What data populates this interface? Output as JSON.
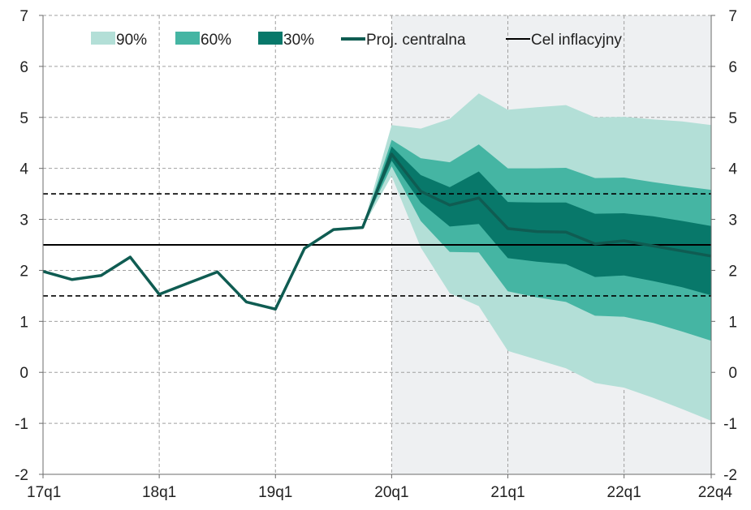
{
  "chart_data": {
    "type": "area",
    "title": "",
    "xlabel": "",
    "ylabel": "",
    "ylim": [
      -2,
      7
    ],
    "yticks": [
      -2,
      -1,
      0,
      1,
      2,
      3,
      4,
      5,
      6,
      7
    ],
    "yticks_right": [
      -2,
      -1,
      0,
      1,
      2,
      3,
      4,
      5,
      6,
      7
    ],
    "xticks": [
      {
        "label": "17q1",
        "x": 0
      },
      {
        "label": "18q1",
        "x": 4
      },
      {
        "label": "19q1",
        "x": 8
      },
      {
        "label": "20q1",
        "x": 12
      },
      {
        "label": "21q1",
        "x": 16
      },
      {
        "label": "22q1",
        "x": 20
      },
      {
        "label": "22q4",
        "x": 23
      }
    ],
    "quarters": [
      "17q1",
      "17q2",
      "17q3",
      "17q4",
      "18q1",
      "18q2",
      "18q3",
      "18q4",
      "19q1",
      "19q2",
      "19q3",
      "19q4",
      "20q1",
      "20q2",
      "20q3",
      "20q4",
      "21q1",
      "21q2",
      "21q3",
      "21q4",
      "22q1",
      "22q2",
      "22q3",
      "22q4"
    ],
    "grid": true,
    "legend_position": "top",
    "projection_shading_from": "20q1",
    "colors": {
      "band90": "#b3dfd7",
      "band60": "#45b5a3",
      "band30": "#08786a",
      "central": "#0f5c52",
      "target": "#000000",
      "shade": "#eef0f2",
      "grid": "#a0a0a0"
    },
    "legend": [
      {
        "key": "band90",
        "label": "90%",
        "kind": "box"
      },
      {
        "key": "band60",
        "label": "60%",
        "kind": "box"
      },
      {
        "key": "band30",
        "label": "30%",
        "kind": "box"
      },
      {
        "key": "central",
        "label": "Proj. centralna",
        "kind": "line"
      },
      {
        "key": "target",
        "label": "Cel inflacyjny",
        "kind": "line"
      }
    ],
    "central": [
      1.98,
      1.82,
      1.9,
      2.26,
      1.53,
      1.75,
      1.97,
      1.38,
      1.24,
      2.43,
      2.8,
      2.84,
      4.28,
      3.55,
      3.28,
      3.42,
      2.82,
      2.76,
      2.75,
      2.52,
      2.58,
      2.48,
      2.38,
      2.28
    ],
    "fan_start_index": 11,
    "bands": {
      "band90": {
        "upper": [
          2.84,
          4.85,
          4.78,
          4.97,
          5.47,
          5.15,
          5.2,
          5.24,
          5.0,
          5.01,
          4.96,
          4.92,
          4.85
        ],
        "lower": [
          2.84,
          3.85,
          2.45,
          1.55,
          1.3,
          0.42,
          0.25,
          0.08,
          -0.21,
          -0.3,
          -0.5,
          -0.72,
          -0.95
        ]
      },
      "band60": {
        "upper": [
          2.84,
          4.56,
          4.2,
          4.12,
          4.47,
          4.0,
          4.0,
          4.01,
          3.81,
          3.82,
          3.73,
          3.65,
          3.58
        ],
        "lower": [
          2.84,
          4.04,
          2.97,
          2.36,
          2.35,
          1.59,
          1.47,
          1.38,
          1.11,
          1.09,
          0.97,
          0.8,
          0.62
        ],
        "label": "60%"
      },
      "band30": {
        "upper": [
          2.84,
          4.43,
          3.87,
          3.63,
          3.94,
          3.34,
          3.33,
          3.33,
          3.11,
          3.12,
          3.06,
          2.97,
          2.87
        ],
        "lower": [
          2.84,
          4.15,
          3.33,
          2.86,
          2.91,
          2.24,
          2.17,
          2.12,
          1.87,
          1.9,
          1.79,
          1.67,
          1.51
        ]
      }
    },
    "target": 2.5,
    "tolerance_band": [
      1.5,
      3.5
    ]
  }
}
